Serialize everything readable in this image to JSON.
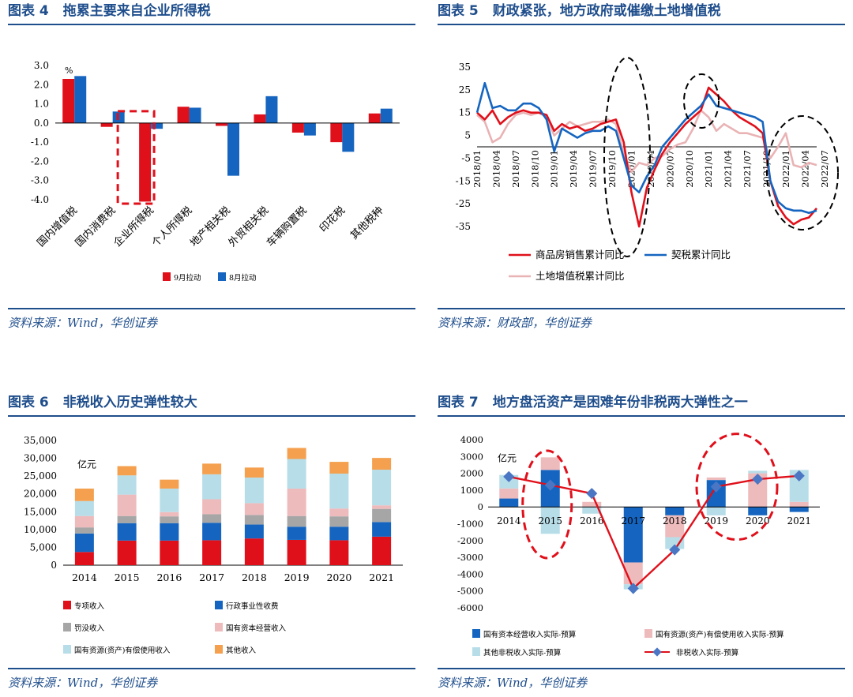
{
  "panels": [
    {
      "label": "图表 4",
      "title": "拖累主要来自企业所得税",
      "source": "资料来源：Wind，华创证券"
    },
    {
      "label": "图表 5",
      "title": "财政紧张，地方政府或催缴土地增值税",
      "source": "资料来源：财政部，华创证券"
    },
    {
      "label": "图表 6",
      "title": "非税收入历史弹性较大",
      "source": "资料来源：Wind，华创证券"
    },
    {
      "label": "图表 7",
      "title": "地方盘活资产是困难年份非税两大弹性之一",
      "source": "资料来源：Wind，华创证券"
    }
  ],
  "chart_data": [
    {
      "type": "bar",
      "unit": "%",
      "categories": [
        "国内增值税",
        "国内消费税",
        "企业所得税",
        "个人所得税",
        "地产相关税",
        "外贸相关税",
        "车辆购置税",
        "印花税",
        "其他税种"
      ],
      "series": [
        {
          "name": "9月拉动",
          "color": "#e0101b",
          "values": [
            2.3,
            -0.2,
            -4.1,
            0.85,
            -0.15,
            0.45,
            -0.5,
            -1.0,
            0.5
          ]
        },
        {
          "name": "8月拉动",
          "color": "#1565c0",
          "values": [
            2.45,
            0.6,
            -0.3,
            0.8,
            -2.75,
            1.4,
            -0.65,
            -1.5,
            0.75
          ]
        }
      ],
      "ylim": [
        -4.0,
        3.0
      ],
      "yticks": [
        "3.0",
        "2.0",
        "1.0",
        "0.0",
        "-1.0",
        "-2.0",
        "-3.0",
        "-4.0"
      ],
      "legend_position": "bottom"
    },
    {
      "type": "line",
      "x_ticks": [
        "2018/01",
        "2018/04",
        "2018/07",
        "2018/10",
        "2019/01",
        "2019/04",
        "2019/07",
        "2019/10",
        "2020/01",
        "2020/04",
        "2020/07",
        "2020/10",
        "2021/01",
        "2021/04",
        "2021/07",
        "2021/10",
        "2022/01",
        "2022/04",
        "2022/07"
      ],
      "ylim": [
        -35,
        35
      ],
      "yticks": [
        "35",
        "25",
        "15",
        "5",
        "-5",
        "-15",
        "-25",
        "-35"
      ],
      "series": [
        {
          "name": "商品房销售累计同比",
          "color": "#e0101b",
          "values": [
            15,
            12,
            16,
            10,
            13,
            15,
            16,
            15,
            15,
            14,
            7,
            10,
            8,
            9,
            7,
            8,
            10,
            11,
            12,
            2,
            -20,
            -35,
            -18,
            -10,
            -3,
            2,
            6,
            10,
            13,
            16,
            26,
            23,
            20,
            16,
            13,
            11,
            9,
            6,
            -15,
            -26,
            -31,
            -34,
            -32,
            -31,
            -27
          ]
        },
        {
          "name": "契税累计同比",
          "color": "#1565c0",
          "values": [
            15,
            28,
            17,
            18,
            16,
            16,
            19,
            19,
            17,
            12,
            -2,
            8,
            6,
            4,
            6,
            7,
            7,
            9,
            7,
            -5,
            -17,
            -20,
            -13,
            -8,
            0,
            4,
            8,
            12,
            15,
            18,
            23,
            18,
            17,
            16,
            15,
            14,
            13,
            11,
            -15,
            -24,
            -27,
            -28,
            -28,
            -29,
            -28
          ]
        },
        {
          "name": "土地增值税累计同比",
          "color": "#e9b3b5",
          "values": [
            14,
            11,
            2,
            4,
            10,
            14,
            15,
            14,
            15,
            13,
            5,
            8,
            11,
            9,
            10,
            11,
            11,
            12,
            10,
            -3,
            -11,
            -7,
            -8,
            -5,
            -4,
            -1,
            1,
            2,
            8,
            16,
            13,
            7,
            10,
            8,
            6,
            6,
            5,
            4,
            -5,
            0,
            6,
            -8,
            -9,
            -7,
            -8
          ]
        }
      ],
      "legend_position": "bottom"
    },
    {
      "type": "bar",
      "stacked": true,
      "unit": "亿元",
      "categories": [
        "2014",
        "2015",
        "2016",
        "2017",
        "2018",
        "2019",
        "2020",
        "2021"
      ],
      "ylim": [
        0,
        35000
      ],
      "yticks": [
        "35,000",
        "30,000",
        "25,000",
        "20,000",
        "15,000",
        "10,000",
        "5,000",
        "0"
      ],
      "series": [
        {
          "name": "专项收入",
          "color": "#e0101b",
          "values": [
            3700,
            6900,
            6900,
            7000,
            7500,
            7100,
            7000,
            8000
          ]
        },
        {
          "name": "行政事业性收费",
          "color": "#1565c0",
          "values": [
            5200,
            4900,
            4900,
            4900,
            3900,
            3700,
            3800,
            4100
          ]
        },
        {
          "name": "罚没收入",
          "color": "#a6a6a6",
          "values": [
            1700,
            2000,
            1900,
            2400,
            2700,
            3000,
            2900,
            3700
          ]
        },
        {
          "name": "国有资本经营收入",
          "color": "#eebbbd",
          "values": [
            3200,
            6000,
            1200,
            4200,
            3300,
            7700,
            2200,
            1000
          ]
        },
        {
          "name": "国有资源(资产)有偿使用收入",
          "color": "#b7dde8",
          "values": [
            4200,
            5400,
            6600,
            7000,
            7200,
            8300,
            9800,
            10000
          ]
        },
        {
          "name": "其他收入",
          "color": "#f4a04e",
          "values": [
            3500,
            2600,
            2500,
            3000,
            2800,
            3100,
            3300,
            3300
          ]
        }
      ],
      "legend_position": "bottom"
    },
    {
      "type": "bar",
      "stacked": true,
      "unit": "亿元",
      "categories": [
        "2014",
        "2015",
        "2016",
        "2017",
        "2018",
        "2019",
        "2020",
        "2021"
      ],
      "ylim": [
        -6000,
        4000
      ],
      "yticks": [
        "4000",
        "3000",
        "2000",
        "1000",
        "0",
        "-1000",
        "-2000",
        "-3000",
        "-4000",
        "-5000",
        "-6000"
      ],
      "series": [
        {
          "name": "国有资本经营收入实际-预算",
          "color": "#1565c0",
          "values": [
            500,
            2200,
            0,
            -3300,
            -500,
            1600,
            -500,
            -300
          ]
        },
        {
          "name": "国有资源(资产)有偿使用收入实际-预算",
          "color": "#eebbbd",
          "values": [
            600,
            750,
            300,
            -1300,
            -1300,
            150,
            2000,
            300
          ]
        },
        {
          "name": "其他非税收入实际-预算",
          "color": "#b7dde8",
          "values": [
            800,
            -1600,
            -400,
            -300,
            -700,
            -500,
            150,
            1900
          ]
        },
        {
          "name": "非税收入实际-预算",
          "color": "#e0101b",
          "type": "line",
          "values": [
            1800,
            1300,
            800,
            -4850,
            -2550,
            1200,
            1650,
            1850
          ]
        }
      ],
      "legend_position": "bottom"
    }
  ]
}
